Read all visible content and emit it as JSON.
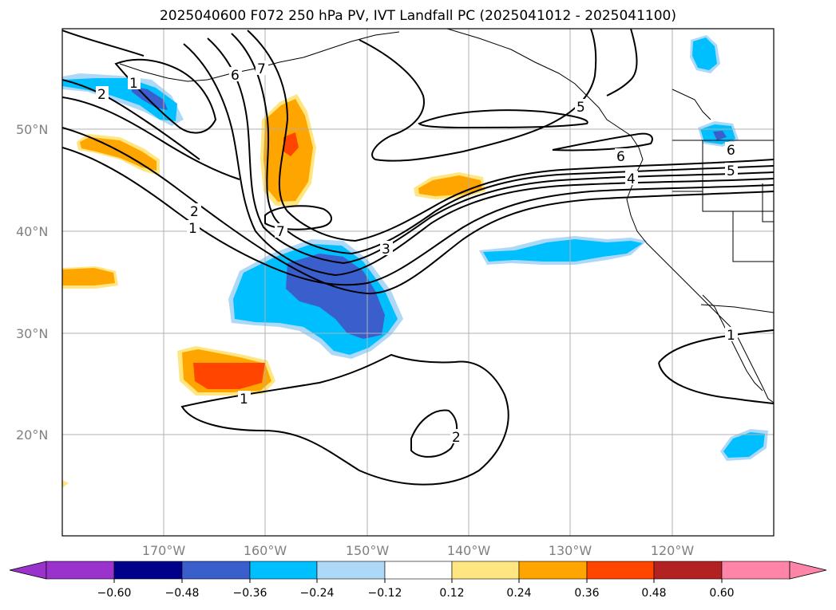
{
  "title": "2025040600 F072 250 hPa PV, IVT Landfall PC (2025041012 - 2025041100)",
  "lat_labels": [
    "50°N",
    "40°N",
    "30°N",
    "20°N"
  ],
  "lon_labels": [
    "170°W",
    "160°W",
    "150°W",
    "140°W",
    "130°W",
    "120°W"
  ],
  "contour_labels": [
    "2",
    "1",
    "6",
    "7",
    "2",
    "1",
    "7",
    "3",
    "6",
    "5",
    "4",
    "5",
    "6",
    "1",
    "1",
    "2"
  ],
  "colorbar": {
    "ticks": [
      "−0.60",
      "−0.48",
      "−0.36",
      "−0.24",
      "−0.12",
      "0.12",
      "0.24",
      "0.36",
      "0.48",
      "0.60"
    ],
    "colors": [
      "#9933cc",
      "#00008b",
      "#3a5fcd",
      "#00bfff",
      "#add8f7",
      "#ffffff",
      "#ffe680",
      "#ffa500",
      "#ff4500",
      "#b22222",
      "#ff85a8"
    ]
  },
  "colors": {
    "neg_light": "#add8f7",
    "neg_mid": "#00bfff",
    "neg_strong": "#3a5fcd",
    "neg_stronger": "#00008b",
    "neg_extreme": "#9933cc",
    "pos_light": "#ffe680",
    "pos_mid": "#ffa500",
    "pos_strong": "#ff4500",
    "grid": "#b0b0b0",
    "contour": "#000000"
  }
}
